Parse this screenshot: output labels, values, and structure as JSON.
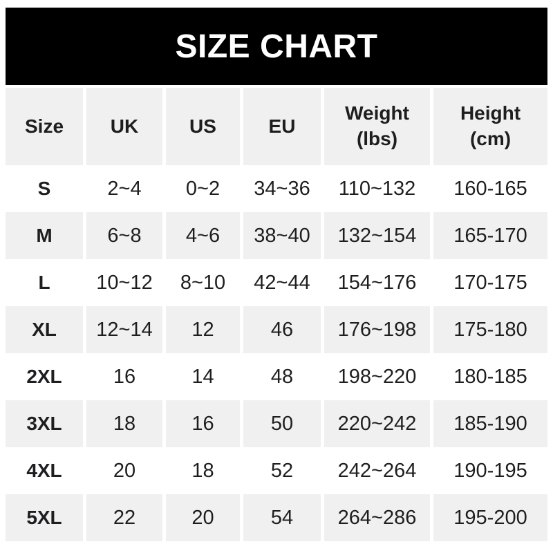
{
  "colors": {
    "banner_bg": "#000000",
    "banner_text": "#ffffff",
    "alt_row_bg": "#f0f0f0",
    "row_bg": "#ffffff",
    "text": "#1e1e20"
  },
  "chart_data": {
    "type": "table",
    "title": "SIZE CHART",
    "header": {
      "size": "Size",
      "uk": "UK",
      "us": "US",
      "eu": "EU",
      "weight": "Weight",
      "weight_unit": "(lbs)",
      "height": "Height",
      "height_unit": "(cm)"
    },
    "rows": [
      {
        "size": "S",
        "uk": "2~4",
        "us": "0~2",
        "eu": "34~36",
        "weight": "110~132",
        "height": "160-165"
      },
      {
        "size": "M",
        "uk": "6~8",
        "us": "4~6",
        "eu": "38~40",
        "weight": "132~154",
        "height": "165-170"
      },
      {
        "size": "L",
        "uk": "10~12",
        "us": "8~10",
        "eu": "42~44",
        "weight": "154~176",
        "height": "170-175"
      },
      {
        "size": "XL",
        "uk": "12~14",
        "us": "12",
        "eu": "46",
        "weight": "176~198",
        "height": "175-180"
      },
      {
        "size": "2XL",
        "uk": "16",
        "us": "14",
        "eu": "48",
        "weight": "198~220",
        "height": "180-185"
      },
      {
        "size": "3XL",
        "uk": "18",
        "us": "16",
        "eu": "50",
        "weight": "220~242",
        "height": "185-190"
      },
      {
        "size": "4XL",
        "uk": "20",
        "us": "18",
        "eu": "52",
        "weight": "242~264",
        "height": "190-195"
      },
      {
        "size": "5XL",
        "uk": "22",
        "us": "20",
        "eu": "54",
        "weight": "264~286",
        "height": "195-200"
      }
    ]
  }
}
